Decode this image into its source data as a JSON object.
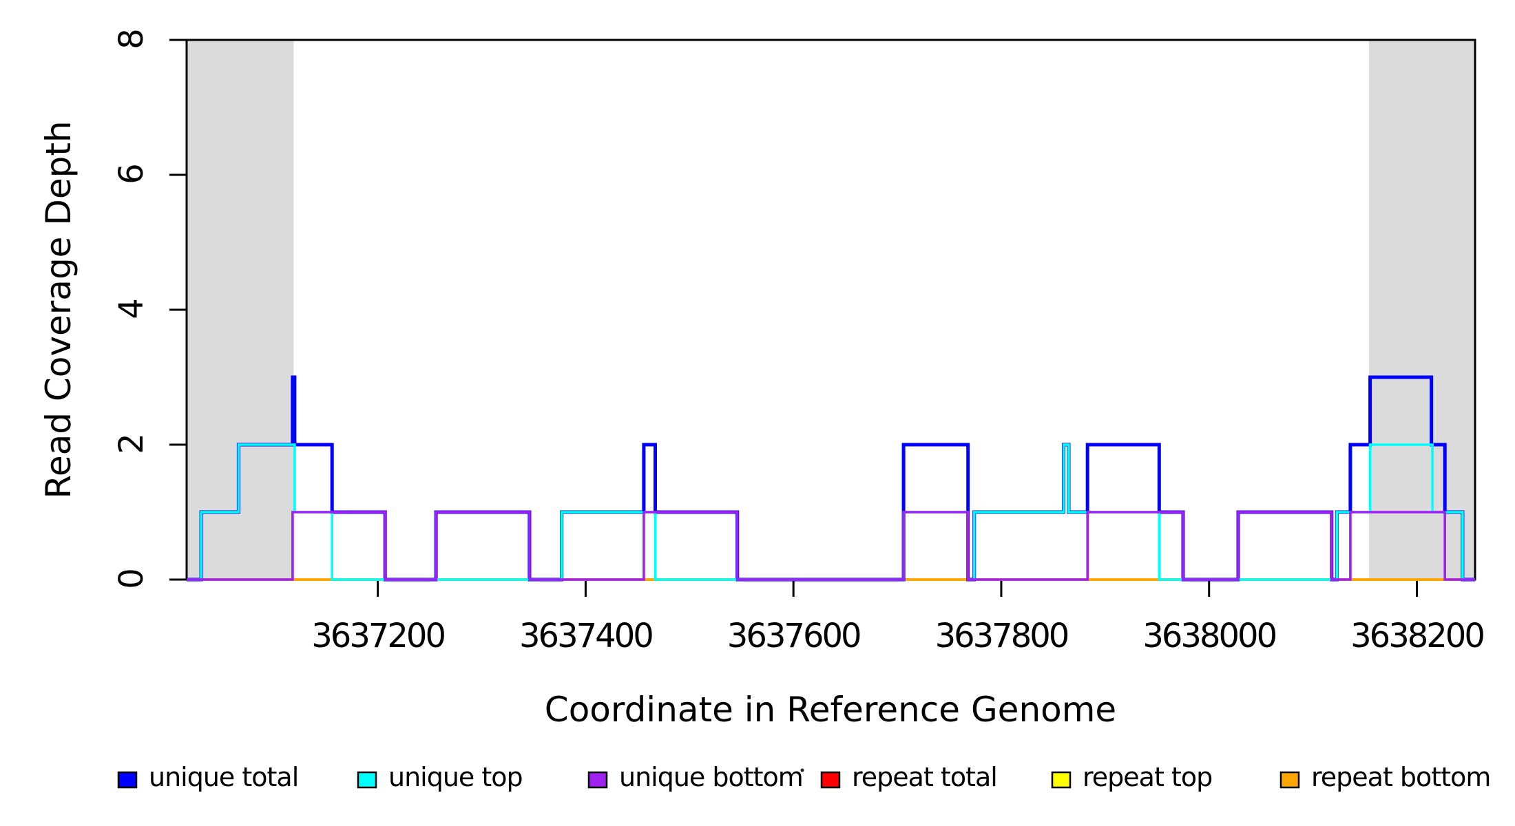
{
  "chart_data": {
    "type": "step-line",
    "title": "",
    "xlabel": "Coordinate in Reference Genome",
    "ylabel": "Read Coverage Depth",
    "x_range": [
      3637016,
      3638256
    ],
    "ylim": [
      0,
      8
    ],
    "x_ticks": [
      3637200,
      3637400,
      3637600,
      3637800,
      3638000,
      3638200
    ],
    "y_ticks": [
      0,
      2,
      4,
      6,
      8
    ],
    "grid": "off",
    "legend_position": "bottom",
    "shade_color": "#DBDBDB",
    "shaded_regions": [
      {
        "start": 3637016,
        "end": 3637119
      },
      {
        "start": 3638154,
        "end": 3638256
      }
    ],
    "draw_order": [
      "repeat total",
      "repeat top",
      "repeat bottom",
      "unique total",
      "unique top",
      "unique bottom"
    ],
    "series": [
      {
        "name": "unique total",
        "color": "#0000FF",
        "steps": [
          [
            3637016,
            0
          ],
          [
            3637030,
            1
          ],
          [
            3637066,
            2
          ],
          [
            3637118,
            3
          ],
          [
            3637120,
            2
          ],
          [
            3637156,
            1
          ],
          [
            3637207,
            0
          ],
          [
            3637256,
            1
          ],
          [
            3637346,
            0
          ],
          [
            3637377,
            1
          ],
          [
            3637456,
            2
          ],
          [
            3637467,
            1
          ],
          [
            3637546,
            0
          ],
          [
            3637706,
            2
          ],
          [
            3637768,
            0
          ],
          [
            3637774,
            1
          ],
          [
            3637860,
            2
          ],
          [
            3637865,
            1
          ],
          [
            3637883,
            2
          ],
          [
            3637952,
            1
          ],
          [
            3637975,
            0
          ],
          [
            3638028,
            1
          ],
          [
            3638118,
            0
          ],
          [
            3638123,
            1
          ],
          [
            3638136,
            2
          ],
          [
            3638155,
            3
          ],
          [
            3638214,
            2
          ],
          [
            3638227,
            1
          ],
          [
            3638244,
            0
          ]
        ]
      },
      {
        "name": "unique top",
        "color": "#00FFFF",
        "steps": [
          [
            3637016,
            0
          ],
          [
            3637030,
            1
          ],
          [
            3637066,
            2
          ],
          [
            3637120,
            1
          ],
          [
            3637156,
            0
          ],
          [
            3637377,
            1
          ],
          [
            3637467,
            0
          ],
          [
            3637706,
            1
          ],
          [
            3637768,
            0
          ],
          [
            3637774,
            1
          ],
          [
            3637860,
            2
          ],
          [
            3637865,
            1
          ],
          [
            3637952,
            0
          ],
          [
            3638123,
            1
          ],
          [
            3638155,
            2
          ],
          [
            3638215,
            1
          ],
          [
            3638244,
            0
          ]
        ]
      },
      {
        "name": "unique bottom",
        "color": "#A020F0",
        "steps": [
          [
            3637016,
            0
          ],
          [
            3637118,
            1
          ],
          [
            3637207,
            0
          ],
          [
            3637256,
            1
          ],
          [
            3637346,
            0
          ],
          [
            3637456,
            1
          ],
          [
            3637546,
            0
          ],
          [
            3637706,
            1
          ],
          [
            3637768,
            0
          ],
          [
            3637883,
            1
          ],
          [
            3637975,
            0
          ],
          [
            3638028,
            1
          ],
          [
            3638118,
            0
          ],
          [
            3638136,
            1
          ],
          [
            3638227,
            0
          ]
        ]
      },
      {
        "name": "repeat total",
        "color": "#FF0000",
        "steps": [
          [
            3637016,
            0
          ]
        ]
      },
      {
        "name": "repeat top",
        "color": "#FFFF00",
        "steps": [
          [
            3637016,
            0
          ]
        ]
      },
      {
        "name": "repeat bottom",
        "color": "#FFA500",
        "steps": [
          [
            3637016,
            0
          ]
        ]
      }
    ],
    "legend": [
      {
        "label": "unique total",
        "color": "#0000FF"
      },
      {
        "label": "unique top",
        "color": "#00FFFF"
      },
      {
        "label": "unique bottom",
        "color": "#A020F0"
      },
      {
        "label": "repeat total",
        "color": "#FF0000"
      },
      {
        "label": "repeat top",
        "color": "#FFFF00"
      },
      {
        "label": "repeat bottom",
        "color": "#FFA500"
      }
    ]
  }
}
